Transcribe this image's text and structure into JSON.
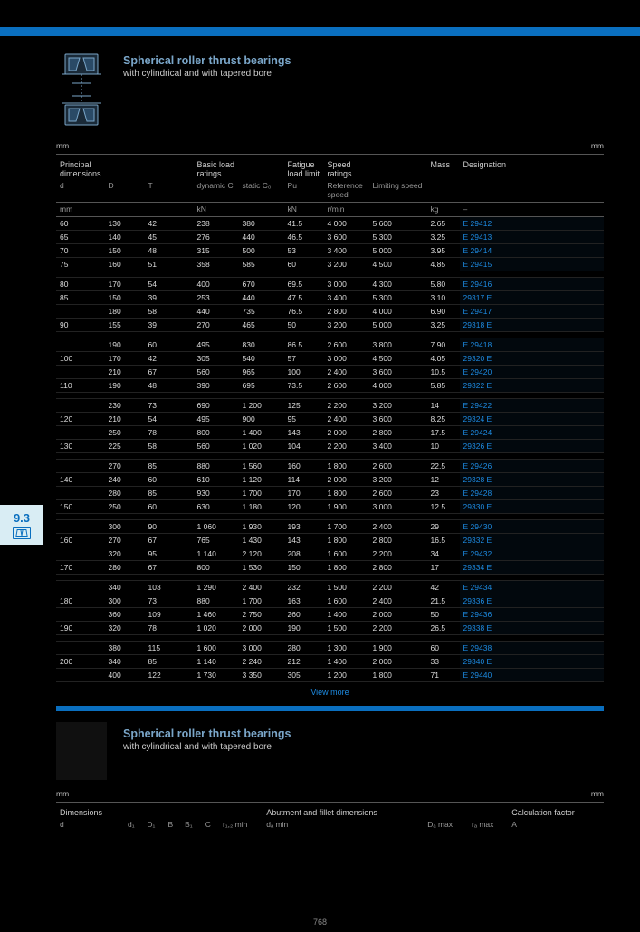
{
  "page_number": "768",
  "side_tab": "9.3",
  "top": {
    "title": "Spherical roller thrust bearings",
    "subtitle": "with cylindrical and with tapered bore",
    "dims_label": "mm",
    "head1": [
      "Principal dimensions",
      "",
      "",
      "Basic load ratings",
      "",
      "Fatigue load limit",
      "Speed ratings",
      "",
      "Mass",
      "Designation"
    ],
    "head2": [
      "d",
      "D",
      "T",
      "dynamic C",
      "static C₀",
      "Pu",
      "Reference speed",
      "Limiting speed",
      "",
      ""
    ],
    "units": [
      "mm",
      "",
      "",
      "kN",
      "",
      "kN",
      "r/min",
      "",
      "kg",
      "–"
    ],
    "col_classes": [
      "col-d",
      "col-D",
      "col-T",
      "col-C",
      "col-C0",
      "col-Pu",
      "col-nr",
      "col-nl",
      "col-m",
      "col-des"
    ],
    "groups": [
      {
        "rows": [
          [
            "60",
            "130",
            "42",
            "238",
            "380",
            "41.5",
            "4 000",
            "5 600",
            "2.65",
            "E 29412"
          ],
          [
            "65",
            "140",
            "45",
            "276",
            "440",
            "46.5",
            "3 600",
            "5 300",
            "3.25",
            "E 29413"
          ],
          [
            "70",
            "150",
            "48",
            "315",
            "500",
            "53",
            "3 400",
            "5 000",
            "3.95",
            "E 29414"
          ],
          [
            "75",
            "160",
            "51",
            "358",
            "585",
            "60",
            "3 200",
            "4 500",
            "4.85",
            "E 29415"
          ]
        ]
      },
      {
        "rows": [
          [
            "80",
            "170",
            "54",
            "400",
            "670",
            "69.5",
            "3 000",
            "4 300",
            "5.80",
            "E 29416"
          ],
          [
            "85",
            "150",
            "39",
            "253",
            "440",
            "47.5",
            "3 400",
            "5 300",
            "3.10",
            "29317 E"
          ],
          [
            "",
            "180",
            "58",
            "440",
            "735",
            "76.5",
            "2 800",
            "4 000",
            "6.90",
            "E 29417"
          ],
          [
            "90",
            "155",
            "39",
            "270",
            "465",
            "50",
            "3 200",
            "5 000",
            "3.25",
            "29318 E"
          ]
        ]
      },
      {
        "rows": [
          [
            "",
            "190",
            "60",
            "495",
            "830",
            "86.5",
            "2 600",
            "3 800",
            "7.90",
            "E 29418"
          ],
          [
            "100",
            "170",
            "42",
            "305",
            "540",
            "57",
            "3 000",
            "4 500",
            "4.05",
            "29320 E"
          ],
          [
            "",
            "210",
            "67",
            "560",
            "965",
            "100",
            "2 400",
            "3 600",
            "10.5",
            "E 29420"
          ],
          [
            "110",
            "190",
            "48",
            "390",
            "695",
            "73.5",
            "2 600",
            "4 000",
            "5.85",
            "29322 E"
          ]
        ]
      },
      {
        "rows": [
          [
            "",
            "230",
            "73",
            "690",
            "1 200",
            "125",
            "2 200",
            "3 200",
            "14",
            "E 29422"
          ],
          [
            "120",
            "210",
            "54",
            "495",
            "900",
            "95",
            "2 400",
            "3 600",
            "8.25",
            "29324 E"
          ],
          [
            "",
            "250",
            "78",
            "800",
            "1 400",
            "143",
            "2 000",
            "2 800",
            "17.5",
            "E 29424"
          ],
          [
            "130",
            "225",
            "58",
            "560",
            "1 020",
            "104",
            "2 200",
            "3 400",
            "10",
            "29326 E"
          ]
        ]
      },
      {
        "rows": [
          [
            "",
            "270",
            "85",
            "880",
            "1 560",
            "160",
            "1 800",
            "2 600",
            "22.5",
            "E 29426"
          ],
          [
            "140",
            "240",
            "60",
            "610",
            "1 120",
            "114",
            "2 000",
            "3 200",
            "12",
            "29328 E"
          ],
          [
            "",
            "280",
            "85",
            "930",
            "1 700",
            "170",
            "1 800",
            "2 600",
            "23",
            "E 29428"
          ],
          [
            "150",
            "250",
            "60",
            "630",
            "1 180",
            "120",
            "1 900",
            "3 000",
            "12.5",
            "29330 E"
          ]
        ]
      },
      {
        "rows": [
          [
            "",
            "300",
            "90",
            "1 060",
            "1 930",
            "193",
            "1 700",
            "2 400",
            "29",
            "E 29430"
          ],
          [
            "160",
            "270",
            "67",
            "765",
            "1 430",
            "143",
            "1 800",
            "2 800",
            "16.5",
            "29332 E"
          ],
          [
            "",
            "320",
            "95",
            "1 140",
            "2 120",
            "208",
            "1 600",
            "2 200",
            "34",
            "E 29432"
          ],
          [
            "170",
            "280",
            "67",
            "800",
            "1 530",
            "150",
            "1 800",
            "2 800",
            "17",
            "29334 E"
          ]
        ]
      },
      {
        "rows": [
          [
            "",
            "340",
            "103",
            "1 290",
            "2 400",
            "232",
            "1 500",
            "2 200",
            "42",
            "E 29434"
          ],
          [
            "180",
            "300",
            "73",
            "880",
            "1 700",
            "163",
            "1 600",
            "2 400",
            "21.5",
            "29336 E"
          ],
          [
            "",
            "360",
            "109",
            "1 460",
            "2 750",
            "260",
            "1 400",
            "2 000",
            "50",
            "E 29436"
          ],
          [
            "190",
            "320",
            "78",
            "1 020",
            "2 000",
            "190",
            "1 500",
            "2 200",
            "26.5",
            "29338 E"
          ]
        ]
      },
      {
        "rows": [
          [
            "",
            "380",
            "115",
            "1 600",
            "3 000",
            "280",
            "1 300",
            "1 900",
            "60",
            "E 29438"
          ],
          [
            "200",
            "340",
            "85",
            "1 140",
            "2 240",
            "212",
            "1 400",
            "2 000",
            "33",
            "29340 E"
          ],
          [
            "",
            "400",
            "122",
            "1 730",
            "3 350",
            "305",
            "1 200",
            "1 800",
            "71",
            "E 29440"
          ]
        ]
      }
    ],
    "more": "View more"
  },
  "bottom": {
    "title": "Spherical roller thrust bearings",
    "subtitle": "with cylindrical and with tapered bore",
    "dims_label": "mm",
    "head1": [
      "Dimensions",
      "",
      "",
      "",
      "",
      "",
      "",
      "Abutment and fillet dimensions",
      "",
      "",
      "Calculation factor"
    ],
    "head2": [
      "d",
      "d₁",
      "D₁",
      "B",
      "B₁",
      "C",
      "r₁,₂ min",
      "dₐ min",
      "Dₐ max",
      "rₐ max",
      "A"
    ]
  },
  "colors": {
    "accent": "#0a6fbf",
    "link": "#1d8be2",
    "tab_bg": "#d9edf4"
  }
}
